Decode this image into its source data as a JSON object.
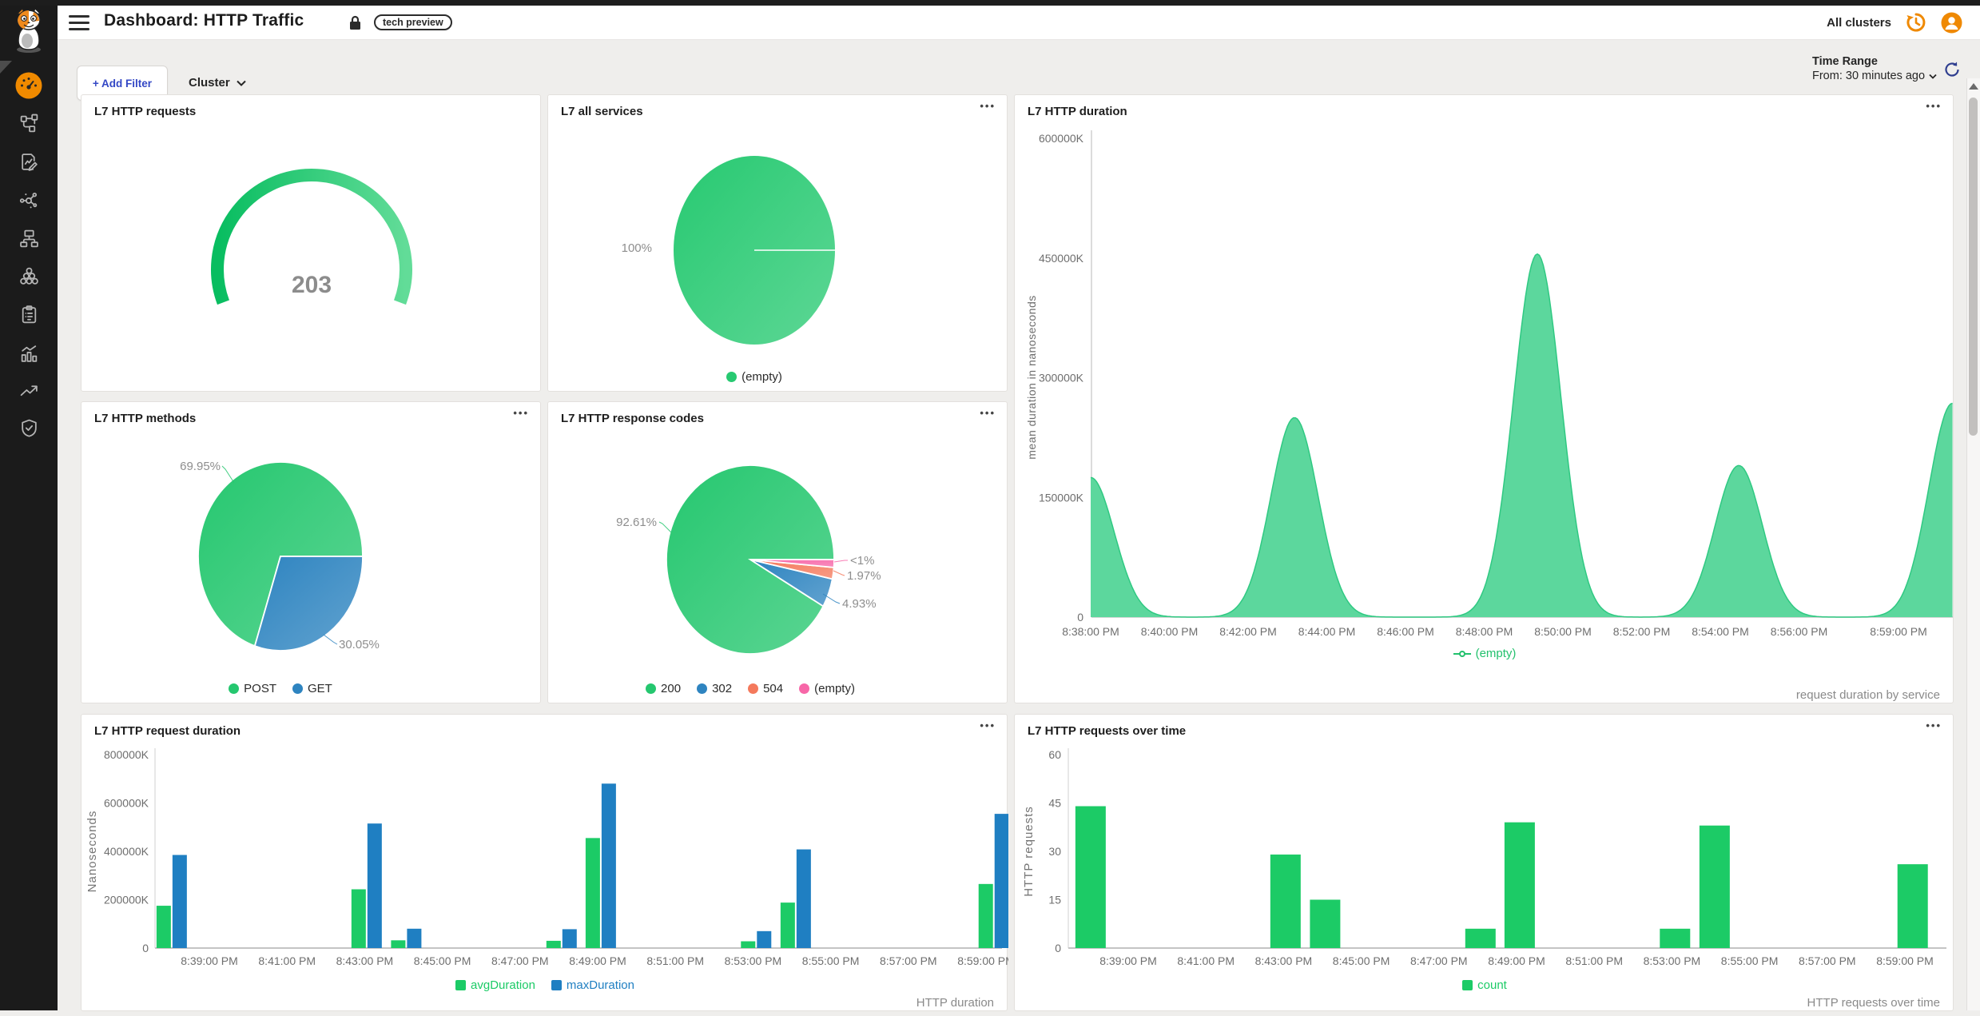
{
  "ui": {
    "title": "Dashboard: HTTP Traffic",
    "badge": "tech preview",
    "all_clusters": "All clusters",
    "add_filter": "+ Add Filter",
    "cluster": "Cluster",
    "time_range_label": "Time Range",
    "time_range_value": "From: 30 minutes ago",
    "accent_orange": "#f08a00",
    "sidebar_icons": [
      "gauge-icon",
      "topology-icon",
      "document-edit-icon",
      "molecule-icon",
      "sitemap-icon",
      "honeycomb-icon",
      "clipboard-icon",
      "bar-chart-icon",
      "trend-icon",
      "shield-icon"
    ]
  },
  "panels": [
    {
      "title": "L7 HTTP requests",
      "menu": false,
      "caption": ""
    },
    {
      "title": "L7 all services",
      "menu": true,
      "caption": ""
    },
    {
      "title": "L7 HTTP duration",
      "menu": true,
      "caption": "request duration by service"
    },
    {
      "title": "L7 HTTP methods",
      "menu": true,
      "caption": ""
    },
    {
      "title": "L7 HTTP response codes",
      "menu": true,
      "caption": ""
    },
    {
      "title": "L7 HTTP request duration",
      "menu": true,
      "caption": "HTTP duration"
    },
    {
      "title": "L7 HTTP requests over time",
      "menu": true,
      "caption": "HTTP requests over time"
    }
  ],
  "chart_data": [
    {
      "panel": "l7-http-requests",
      "type": "gauge",
      "value": 203,
      "color_start": "#08bd60",
      "color_end": "#62dc98"
    },
    {
      "panel": "l7-all-services",
      "type": "pie",
      "legend": [
        {
          "label": "(empty)",
          "color": "#27c971"
        }
      ],
      "slices": [
        {
          "label": "(empty)",
          "pct": 100,
          "display": "100%",
          "color": "#27c971"
        }
      ]
    },
    {
      "panel": "l7-http-duration",
      "type": "area",
      "ylabel": "mean duration in nanoseconds",
      "y_ticks": [
        "600000K",
        "450000K",
        "300000K",
        "150000K",
        "0"
      ],
      "y_max_K": 600000,
      "x_ticks": [
        "8:38:00 PM",
        "8:40:00 PM",
        "8:42:00 PM",
        "8:44:00 PM",
        "8:46:00 PM",
        "8:48:00 PM",
        "8:50:00 PM",
        "8:52:00 PM",
        "8:54:00 PM",
        "8:56:00 PM",
        "8:59:00 PM"
      ],
      "x_unit": "minutes after 8:38:00 PM",
      "x_span_min": 21.9,
      "series": [
        {
          "name": "(empty)",
          "color": "#2fc982",
          "fill": "#5cd79d",
          "peaks_min_K": [
            [
              0,
              175000
            ],
            [
              5.18,
              250000
            ],
            [
              11.35,
              455000
            ],
            [
              16.47,
              190000
            ],
            [
              21.9,
              268000
            ]
          ]
        }
      ],
      "legend": [
        {
          "label": "(empty)",
          "color": "#23c16d"
        }
      ],
      "caption": "request duration by service"
    },
    {
      "panel": "l7-http-methods",
      "type": "pie",
      "legend": [
        {
          "label": "POST",
          "color": "#25c76f"
        },
        {
          "label": "GET",
          "color": "#2e84c0"
        }
      ],
      "slices": [
        {
          "label": "POST",
          "pct": 69.95,
          "display": "69.95%",
          "color": "#25c76f"
        },
        {
          "label": "GET",
          "pct": 30.05,
          "display": "30.05%",
          "color": "#2e84c0"
        }
      ]
    },
    {
      "panel": "l7-http-response-codes",
      "type": "pie",
      "legend": [
        {
          "label": "200",
          "color": "#25c76f"
        },
        {
          "label": "302",
          "color": "#2e84c0"
        },
        {
          "label": "504",
          "color": "#f4795c"
        },
        {
          "label": "(empty)",
          "color": "#f767a8"
        }
      ],
      "slices": [
        {
          "label": "200",
          "pct": 92.61,
          "display": "92.61%",
          "color": "#25c76f"
        },
        {
          "label": "302",
          "pct": 4.93,
          "display": "4.93%",
          "color": "#2e84c0"
        },
        {
          "label": "504",
          "pct": 1.97,
          "display": "1.97%",
          "color": "#f4795c"
        },
        {
          "label": "(empty)",
          "pct": 0.49,
          "display": "<1%",
          "color": "#f767a8"
        }
      ]
    },
    {
      "panel": "l7-http-request-duration",
      "type": "bar",
      "ylabel": "Nanoseconds",
      "y_ticks": [
        "800000K",
        "600000K",
        "400000K",
        "200000K",
        "0"
      ],
      "y_max_K": 800000,
      "x_ticks": [
        "8:39:00 PM",
        "8:41:00 PM",
        "8:43:00 PM",
        "8:45:00 PM",
        "8:47:00 PM",
        "8:49:00 PM",
        "8:51:00 PM",
        "8:53:00 PM",
        "8:55:00 PM",
        "8:57:00 PM",
        "8:59:00 PM"
      ],
      "x_unit": "minutes after 8:38:00 PM",
      "categories_min": [
        0.03,
        5.05,
        6.07,
        10.07,
        11.08,
        15.08,
        16.1,
        21.2
      ],
      "series": [
        {
          "name": "avgDuration",
          "color": "#1ccb66",
          "values_K": [
            175000,
            243000,
            32000,
            30000,
            455000,
            28000,
            188000,
            265000
          ]
        },
        {
          "name": "maxDuration",
          "color": "#1f7fc2",
          "values_K": [
            385000,
            515000,
            80000,
            78000,
            680000,
            70000,
            408000,
            555000
          ]
        }
      ],
      "legend": [
        {
          "label": "avgDuration",
          "color": "#1ccb66"
        },
        {
          "label": "maxDuration",
          "color": "#1f7fc2"
        }
      ],
      "caption": "HTTP duration"
    },
    {
      "panel": "l7-http-requests-over-time",
      "type": "bar",
      "ylabel": "HTTP requests",
      "y_ticks": [
        "60",
        "45",
        "30",
        "15",
        "0"
      ],
      "y_max": 60,
      "x_ticks": [
        "8:39:00 PM",
        "8:41:00 PM",
        "8:43:00 PM",
        "8:45:00 PM",
        "8:47:00 PM",
        "8:49:00 PM",
        "8:51:00 PM",
        "8:53:00 PM",
        "8:55:00 PM",
        "8:57:00 PM",
        "8:59:00 PM"
      ],
      "x_unit": "minutes after 8:38:00 PM",
      "categories_min": [
        0.03,
        5.05,
        6.07,
        10.07,
        11.08,
        15.08,
        16.1,
        21.2
      ],
      "series": [
        {
          "name": "count",
          "color": "#1ccb66",
          "values": [
            44,
            29,
            15,
            6,
            39,
            6,
            38,
            26
          ]
        }
      ],
      "legend": [
        {
          "label": "count",
          "color": "#1ccb66"
        }
      ],
      "caption": "HTTP requests over time"
    }
  ]
}
